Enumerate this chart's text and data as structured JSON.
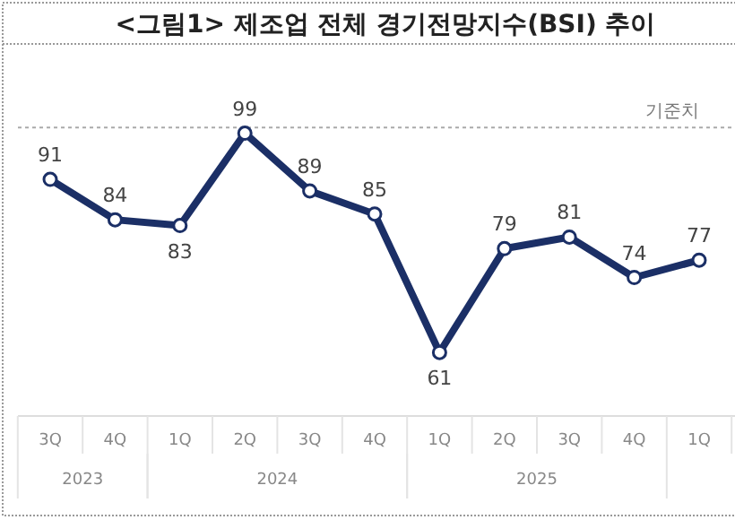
{
  "chart_data": {
    "type": "line",
    "title": "<그림1> 제조업 전체 경기전망지수(BSI) 추이",
    "categories": [
      "3Q",
      "4Q",
      "1Q",
      "2Q",
      "3Q",
      "4Q",
      "1Q",
      "2Q",
      "3Q",
      "4Q",
      "1Q"
    ],
    "series": [
      {
        "color": "#1b2f66",
        "values": [
          91,
          84,
          83,
          99,
          89,
          85,
          61,
          79,
          81,
          74,
          77
        ]
      }
    ],
    "ylim": [
      50,
      114
    ],
    "marker": "circle",
    "line_style": "solid",
    "data_labels": true,
    "tick_labels": "x",
    "ref_lines": [
      {
        "axis": "y",
        "value": 100,
        "label": "기준치",
        "color": "#aaaaaa",
        "line_style": "dotted"
      }
    ],
    "annotations": [
      "2023",
      "2024",
      "2025"
    ]
  }
}
